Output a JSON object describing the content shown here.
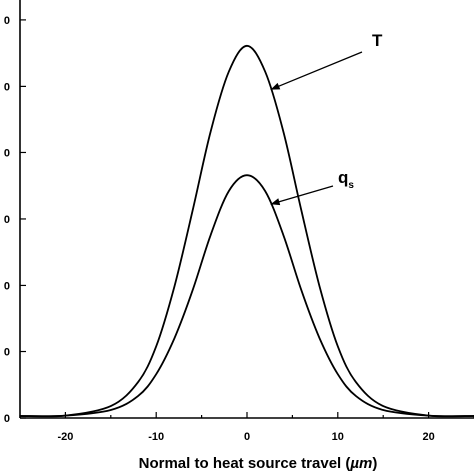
{
  "chart_data": {
    "type": "line",
    "xlabel_prefix": "Normal to heat source travel (",
    "xlabel_unit": "µm",
    "xlabel_suffix": ")",
    "xlim": [
      -25,
      25
    ],
    "ylim": [
      0,
      1.05
    ],
    "x_ticks": [
      -20,
      -10,
      0,
      10,
      20
    ],
    "y_tick_labels": [
      "0",
      "0",
      "0",
      "0",
      "0",
      "0",
      "0"
    ],
    "y_tick_values": [
      0.0,
      0.167,
      0.333,
      0.5,
      0.667,
      0.833,
      1.0
    ],
    "grid": false,
    "series": [
      {
        "name": "T",
        "annotation_main": "T",
        "annotation_sub": "",
        "x": [
          -25,
          -20,
          -15,
          -12,
          -10,
          -8,
          -6,
          -4,
          -2,
          0,
          2,
          4,
          6,
          8,
          10,
          12,
          15,
          20,
          25
        ],
        "values": [
          0.005,
          0.006,
          0.03,
          0.09,
          0.18,
          0.33,
          0.52,
          0.72,
          0.87,
          0.935,
          0.87,
          0.72,
          0.52,
          0.33,
          0.18,
          0.09,
          0.03,
          0.006,
          0.005
        ]
      },
      {
        "name": "q_s",
        "annotation_main": "q",
        "annotation_sub": "s",
        "x": [
          -25,
          -20,
          -15,
          -12,
          -10,
          -8,
          -6,
          -4,
          -2,
          0,
          2,
          4,
          6,
          8,
          10,
          12,
          15,
          20,
          25
        ],
        "values": [
          0.005,
          0.006,
          0.02,
          0.055,
          0.11,
          0.2,
          0.32,
          0.46,
          0.57,
          0.61,
          0.57,
          0.46,
          0.32,
          0.2,
          0.11,
          0.055,
          0.02,
          0.006,
          0.005
        ]
      }
    ]
  }
}
